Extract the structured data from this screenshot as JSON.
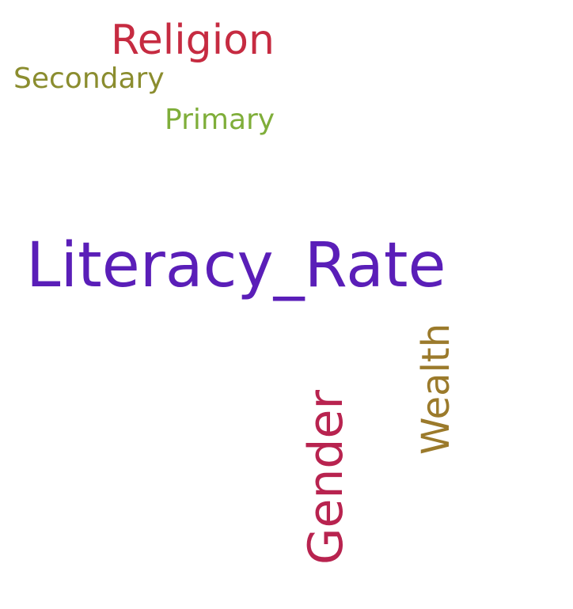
{
  "wordcloud": {
    "words": [
      {
        "text": "Religion",
        "color": "#C62B41"
      },
      {
        "text": "Secondary",
        "color": "#8B8D2F"
      },
      {
        "text": "Primary",
        "color": "#7FAE3A"
      },
      {
        "text": "Literacy_Rate",
        "color": "#5A1EB8"
      },
      {
        "text": "Gender",
        "color": "#B8234F"
      },
      {
        "text": "Wealth",
        "color": "#9B7A2B"
      }
    ]
  }
}
